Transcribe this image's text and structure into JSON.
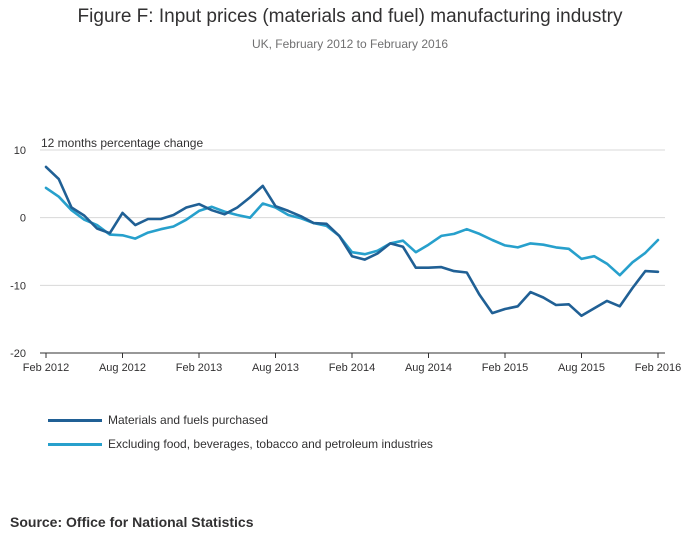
{
  "title": "Figure F: Input prices (materials and fuel) manufacturing industry",
  "subtitle": "UK, February 2012 to February 2016",
  "source": "Source: Office for National Statistics",
  "chart_data": {
    "type": "line",
    "ylabel": "12 months percentage change",
    "xlabel": "",
    "ylim": [
      -20,
      10
    ],
    "yticks": [
      10,
      0,
      -10,
      -20
    ],
    "grid": true,
    "legend_position": "bottom-left",
    "x_tick_labels": [
      "Feb 2012",
      "Aug 2012",
      "Feb 2013",
      "Aug 2013",
      "Feb 2014",
      "Aug 2014",
      "Feb 2015",
      "Aug 2015",
      "Feb 2016"
    ],
    "x": [
      "Feb 2012",
      "Mar 2012",
      "Apr 2012",
      "May 2012",
      "Jun 2012",
      "Jul 2012",
      "Aug 2012",
      "Sep 2012",
      "Oct 2012",
      "Nov 2012",
      "Dec 2012",
      "Jan 2013",
      "Feb 2013",
      "Mar 2013",
      "Apr 2013",
      "May 2013",
      "Jun 2013",
      "Jul 2013",
      "Aug 2013",
      "Sep 2013",
      "Oct 2013",
      "Nov 2013",
      "Dec 2013",
      "Jan 2014",
      "Feb 2014",
      "Mar 2014",
      "Apr 2014",
      "May 2014",
      "Jun 2014",
      "Jul 2014",
      "Aug 2014",
      "Sep 2014",
      "Oct 2014",
      "Nov 2014",
      "Dec 2014",
      "Jan 2015",
      "Feb 2015",
      "Mar 2015",
      "Apr 2015",
      "May 2015",
      "Jun 2015",
      "Jul 2015",
      "Aug 2015",
      "Sep 2015",
      "Oct 2015",
      "Nov 2015",
      "Dec 2015",
      "Jan 2016",
      "Feb 2016"
    ],
    "series": [
      {
        "name": "Materials and fuels purchased",
        "color": "#206095",
        "values": [
          7.5,
          5.7,
          1.5,
          0.3,
          -1.6,
          -2.3,
          0.7,
          -1.1,
          -0.2,
          -0.2,
          0.4,
          1.5,
          2.0,
          1.1,
          0.5,
          1.5,
          3.0,
          4.7,
          1.7,
          1.0,
          0.2,
          -0.8,
          -0.9,
          -2.7,
          -5.7,
          -6.2,
          -5.3,
          -3.8,
          -4.3,
          -7.4,
          -7.4,
          -7.3,
          -7.9,
          -8.1,
          -11.4,
          -14.1,
          -13.5,
          -13.1,
          -11.0,
          -11.8,
          -12.9,
          -12.8,
          -14.5,
          -13.4,
          -12.3,
          -13.1,
          -10.4,
          -7.9,
          -8.0
        ]
      },
      {
        "name": "Excluding food, beverages, tobacco and petroleum industries",
        "color": "#27a0cc",
        "values": [
          4.4,
          3.1,
          1.1,
          -0.3,
          -1.1,
          -2.5,
          -2.6,
          -3.1,
          -2.2,
          -1.7,
          -1.3,
          -0.3,
          1.0,
          1.6,
          0.9,
          0.4,
          0.0,
          2.1,
          1.5,
          0.4,
          -0.1,
          -0.8,
          -1.2,
          -2.7,
          -5.1,
          -5.4,
          -4.9,
          -3.8,
          -3.4,
          -5.1,
          -4.0,
          -2.7,
          -2.4,
          -1.7,
          -2.4,
          -3.3,
          -4.1,
          -4.4,
          -3.8,
          -4.0,
          -4.4,
          -4.6,
          -6.1,
          -5.7,
          -6.8,
          -8.5,
          -6.6,
          -5.2,
          -3.3
        ]
      }
    ]
  }
}
